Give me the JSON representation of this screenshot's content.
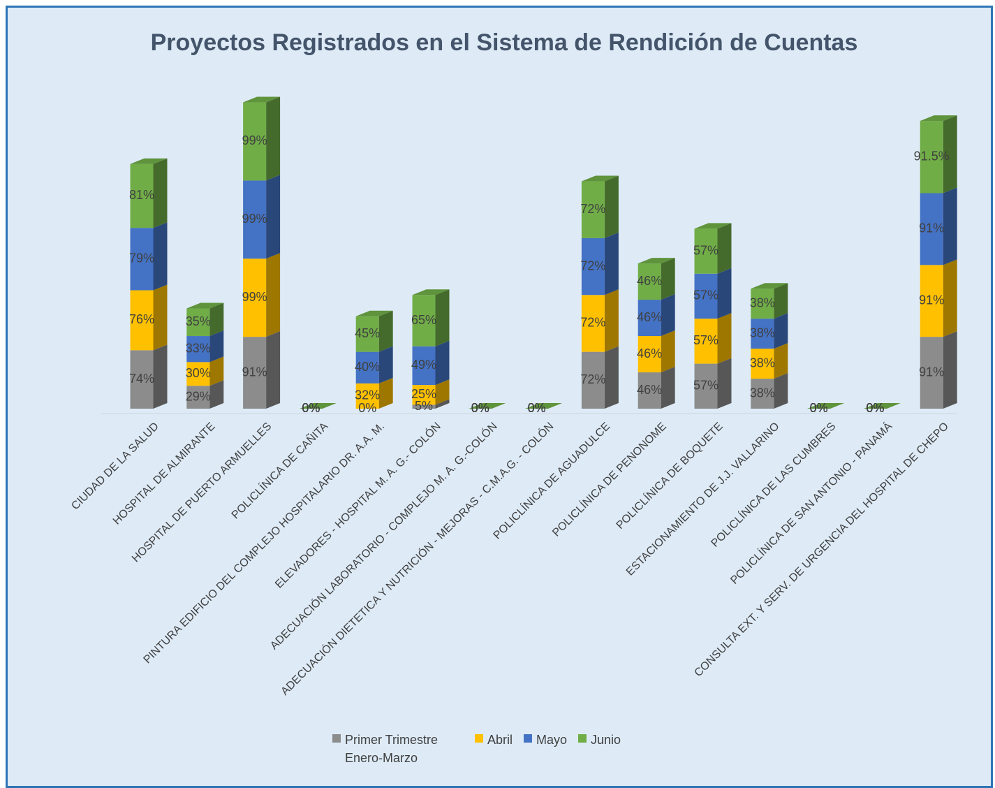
{
  "chart_data": {
    "type": "bar3d_stacked",
    "title": "Proyectos Registrados en el Sistema de Rendición de Cuentas",
    "categories": [
      "CIUDAD DE LA SALUD",
      "HOSPITAL DE ALMIRANTE",
      "HOSPITAL DE PUERTO ARMUELLES",
      "POLICLÍNICA DE CAÑITA",
      "PINTURA EDIFICIO DEL COMPLEJO HOSPITALARIO DR. A.A. M.",
      "ELEVADORES - HOSPITAL M. A. G.- COLÓN",
      "ADECUACIÓN LABORATORIO - COMPLEJO M. A. G.-COLÓN",
      "ADECUACIÓN DIETETICA Y NUTRICIÓN - MEJORAS - C.M.A.G. - COLÓN",
      "POLICLÍNICA DE AGUADULCE",
      "POLICLÍNICA DE PENONOME",
      "POLICLÍNICA DE BOQUETE",
      "ESTACIONAMIENTO DE J.J. VALLARINO",
      "POLICLÍNICA DE LAS CUMBRES",
      "POLICLÍNICA DE SAN ANTONIO - PANAMÁ",
      "CONSULTA EXT. Y SERV. DE URGENCIA DEL HOSPITAL DE CHEPO"
    ],
    "series": [
      {
        "name": "Primer Trimestre Enero-Marzo",
        "color": "#8c8c8c",
        "values": [
          74,
          29,
          91,
          0,
          0,
          5,
          0,
          0,
          72,
          46,
          57,
          38,
          0,
          0,
          91
        ],
        "value_labels": [
          "74%",
          "29%",
          "91%",
          "0%",
          "0%",
          "5%",
          "0%",
          "0%",
          "72%",
          "46%",
          "57%",
          "38%",
          "0%",
          "0%",
          "91%"
        ]
      },
      {
        "name": "Abril",
        "color": "#ffc000",
        "values": [
          76,
          30,
          99,
          0,
          32,
          25,
          0,
          0,
          72,
          46,
          57,
          38,
          0,
          0,
          91
        ],
        "value_labels": [
          "76%",
          "30%",
          "99%",
          "0%",
          "32%",
          "25%",
          "0%",
          "0%",
          "72%",
          "46%",
          "57%",
          "38%",
          "0%",
          "0%",
          "91%"
        ]
      },
      {
        "name": "Mayo",
        "color": "#4472c4",
        "values": [
          79,
          33,
          99,
          0,
          40,
          49,
          0,
          0,
          72,
          46,
          57,
          38,
          0,
          0,
          91
        ],
        "value_labels": [
          "79%",
          "33%",
          "99%",
          "0%",
          "40%",
          "49%",
          "0%",
          "0%",
          "72%",
          "46%",
          "57%",
          "38%",
          "0%",
          "0%",
          "91%"
        ]
      },
      {
        "name": "Junio",
        "color": "#70ad47",
        "values": [
          81,
          35,
          99,
          0,
          45,
          65,
          0,
          0,
          72,
          46,
          57,
          38,
          0,
          0,
          91.5
        ],
        "value_labels": [
          "81%",
          "35%",
          "99%",
          "0%",
          "45%",
          "65%",
          "0%",
          "0%",
          "72%",
          "46%",
          "57%",
          "38%",
          "0%",
          "0%",
          "91.5%"
        ]
      }
    ]
  }
}
